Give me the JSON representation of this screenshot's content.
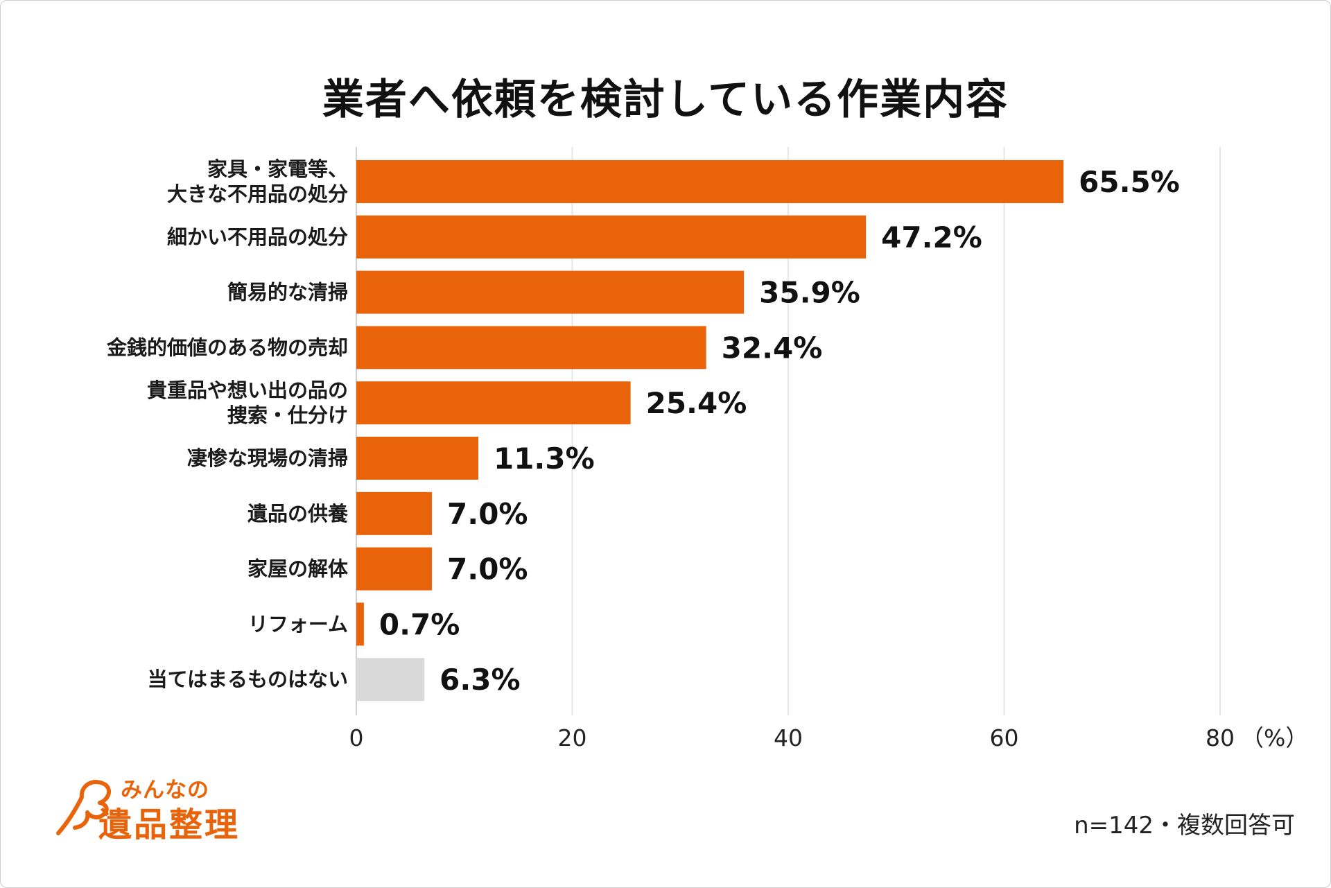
{
  "title": "業者へ依頼を検討している作業内容",
  "note": "n=142・複数回答可",
  "brand": {
    "small": "みんなの",
    "big": "遺品整理",
    "color": "#e8630a"
  },
  "chart_data": {
    "type": "bar",
    "orientation": "horizontal",
    "title": "業者へ依頼を検討している作業内容",
    "categories": [
      [
        "家具・家電等、",
        "大きな不用品の処分"
      ],
      [
        "細かい不用品の処分"
      ],
      [
        "簡易的な清掃"
      ],
      [
        "金銭的価値のある物の売却"
      ],
      [
        "貴重品や想い出の品の",
        "捜索・仕分け"
      ],
      [
        "凄惨な現場の清掃"
      ],
      [
        "遺品の供養"
      ],
      [
        "家屋の解体"
      ],
      [
        "リフォーム"
      ],
      [
        "当てはまるものはない"
      ]
    ],
    "values": [
      65.5,
      47.2,
      35.9,
      32.4,
      25.4,
      11.3,
      7.0,
      7.0,
      0.7,
      6.3
    ],
    "value_labels": [
      "65.5%",
      "47.2%",
      "35.9%",
      "32.4%",
      "25.4%",
      "11.3%",
      "7.0%",
      "7.0%",
      "0.7%",
      "6.3%"
    ],
    "bar_colors": [
      "#e8630a",
      "#e8630a",
      "#e8630a",
      "#e8630a",
      "#e8630a",
      "#e8630a",
      "#e8630a",
      "#e8630a",
      "#e8630a",
      "#d9d9d9"
    ],
    "xlim": [
      0,
      80
    ],
    "xticks": [
      0,
      20,
      40,
      60,
      80
    ],
    "xunit": "（%）",
    "grid": true
  }
}
